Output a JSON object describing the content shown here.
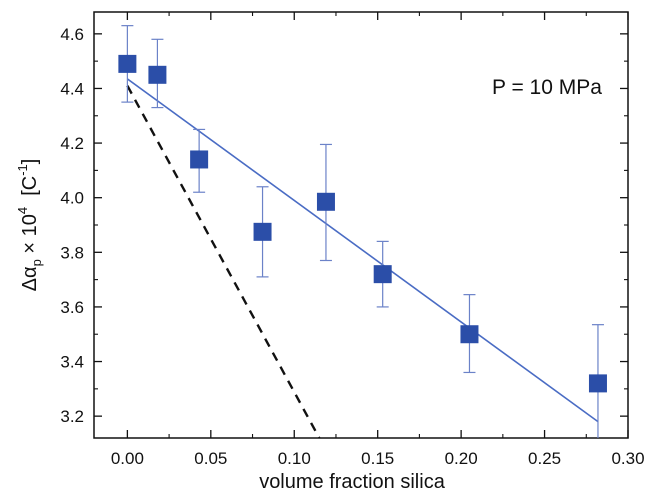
{
  "chart_data": {
    "type": "scatter",
    "xlabel": "volume fraction silica",
    "ylabel": {
      "symbol": "Δα",
      "subscript": "p",
      "times": " × 10",
      "exponent": "4",
      "unit_open": "  [C",
      "unit_exponent": "-1",
      "unit_close": "]"
    },
    "annotation": "P = 10 MPa",
    "xlim": [
      -0.02,
      0.3
    ],
    "ylim": [
      3.12,
      4.68
    ],
    "x_ticks": [
      0.0,
      0.05,
      0.1,
      0.15,
      0.2,
      0.25,
      0.3
    ],
    "x_tick_labels": [
      "0.00",
      "0.05",
      "0.10",
      "0.15",
      "0.20",
      "0.25",
      "0.30"
    ],
    "y_ticks": [
      3.2,
      3.4,
      3.6,
      3.8,
      4.0,
      4.2,
      4.4,
      4.6
    ],
    "y_tick_labels": [
      "3.2",
      "3.4",
      "3.6",
      "3.8",
      "4.0",
      "4.2",
      "4.4",
      "4.6"
    ],
    "grid": false,
    "series": [
      {
        "type": "scatter",
        "marker": "square",
        "color": "#2b4ea8",
        "points": [
          {
            "x": 0.0,
            "y": 4.49,
            "err_low": 4.35,
            "err_high": 4.63
          },
          {
            "x": 0.018,
            "y": 4.45,
            "err_low": 4.33,
            "err_high": 4.58
          },
          {
            "x": 0.043,
            "y": 4.14,
            "err_low": 4.02,
            "err_high": 4.25
          },
          {
            "x": 0.081,
            "y": 3.875,
            "err_low": 3.71,
            "err_high": 4.04
          },
          {
            "x": 0.119,
            "y": 3.985,
            "err_low": 3.77,
            "err_high": 4.195
          },
          {
            "x": 0.153,
            "y": 3.72,
            "err_low": 3.6,
            "err_high": 3.84
          },
          {
            "x": 0.205,
            "y": 3.5,
            "err_low": 3.36,
            "err_high": 3.645
          },
          {
            "x": 0.282,
            "y": 3.32,
            "err_low": 3.11,
            "err_high": 3.535
          }
        ]
      },
      {
        "type": "line",
        "style": "solid",
        "color": "#4a6cc4",
        "x": [
          0.0,
          0.282
        ],
        "y": [
          4.435,
          3.18
        ]
      },
      {
        "type": "line",
        "style": "dashed",
        "color": "#111111",
        "x": [
          0.0,
          0.115
        ],
        "y": [
          4.41,
          3.12
        ]
      }
    ]
  }
}
